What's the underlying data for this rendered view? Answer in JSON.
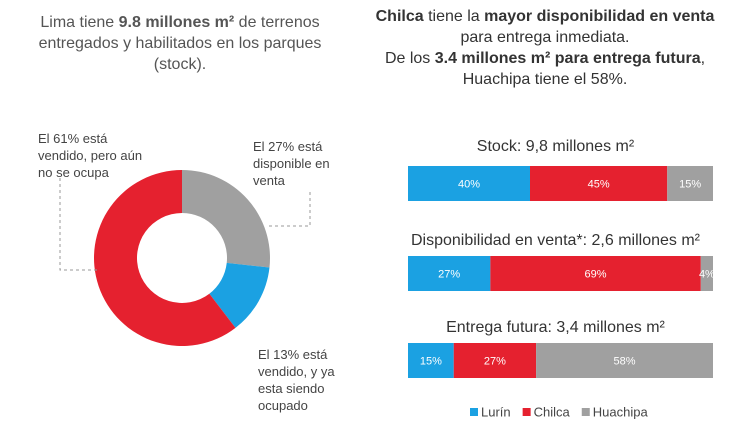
{
  "chart_data": [
    {
      "type": "pie",
      "title": [
        {
          "text": "Lima tiene ",
          "bold": false
        },
        {
          "text": "9.8 millones m²",
          "bold": true
        },
        {
          "text": " de terrenos entregados y habilitados en los parques (stock).",
          "bold": false
        }
      ],
      "values": [
        27,
        13,
        61
      ],
      "colors": [
        "#a0a0a0",
        "#1ba1e2",
        "#e5212f"
      ],
      "annotations": [
        "El 27% está disponible en venta",
        "El 13% está vendido, y ya esta siendo ocupado",
        "El 61% está vendido, pero aún no se ocupa"
      ]
    },
    {
      "type": "stacked-bar",
      "title": [
        [
          {
            "text": "Chilca",
            "bold": true
          },
          {
            "text": " tiene la ",
            "bold": false
          },
          {
            "text": "mayor disponibilidad en venta",
            "bold": true
          },
          {
            "text": " para entrega inmediata.",
            "bold": false
          }
        ],
        [
          {
            "text": "De los ",
            "bold": false
          },
          {
            "text": "3.4 millones m² para entrega futura",
            "bold": true
          },
          {
            "text": ", Huachipa tiene el 58%.",
            "bold": false
          }
        ]
      ],
      "categories": [
        "Stock: 9,8 millones m²",
        "Disponibilidad en venta*: 2,6 millones m²",
        "Entrega futura: 3,4 millones m²"
      ],
      "xlim": [
        0,
        100
      ],
      "series": [
        {
          "name": "Lurín",
          "color": "#1ba1e2",
          "values": [
            40,
            27,
            15
          ],
          "value_labels": [
            "40%",
            "27%",
            "15%"
          ]
        },
        {
          "name": "Chilca",
          "color": "#e5212f",
          "values": [
            45,
            69,
            27
          ],
          "value_labels": [
            "45%",
            "69%",
            "27%"
          ]
        },
        {
          "name": "Huachipa",
          "color": "#a0a0a0",
          "values": [
            15,
            4,
            58
          ],
          "value_labels": [
            "15%",
            "4%",
            "58%"
          ]
        }
      ]
    }
  ]
}
